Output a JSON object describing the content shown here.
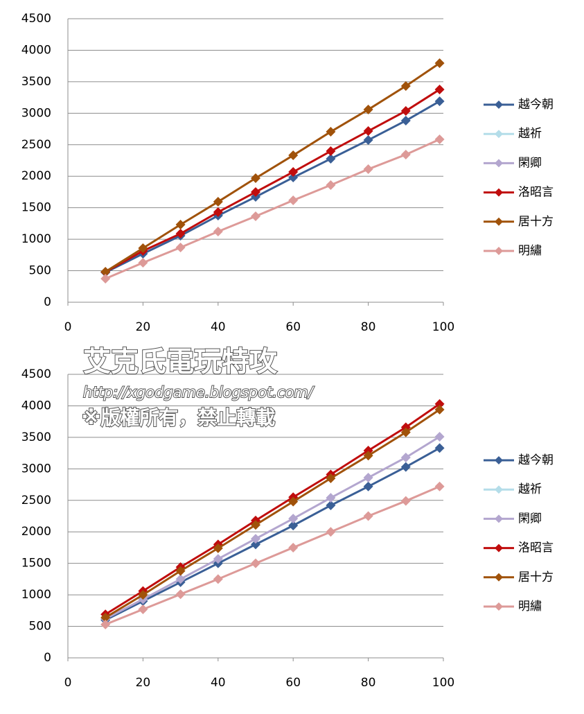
{
  "chart_data": [
    {
      "type": "line",
      "x": [
        10,
        20,
        30,
        40,
        50,
        60,
        70,
        80,
        90,
        99
      ],
      "xlim": [
        0,
        100
      ],
      "xticks": [
        0,
        20,
        40,
        60,
        80,
        100
      ],
      "ylim": [
        0,
        4500
      ],
      "yticks": [
        0,
        500,
        1000,
        1500,
        2000,
        2500,
        3000,
        3500,
        4000,
        4500
      ],
      "grid": true,
      "legend": "right",
      "series": [
        {
          "name": "越今朝",
          "color": "#3a5f96",
          "values": [
            473,
            770,
            1056,
            1375,
            1672,
            1980,
            2277,
            2574,
            2882,
            3190
          ]
        },
        {
          "name": "越祈",
          "color": "#b4dde9",
          "values": [
            null,
            null,
            null,
            null,
            null,
            null,
            null,
            null,
            null,
            null
          ]
        },
        {
          "name": "閑卿",
          "color": "#b3a6cf",
          "values": [
            null,
            null,
            null,
            null,
            null,
            null,
            null,
            null,
            null,
            null
          ]
        },
        {
          "name": "洛昭言",
          "color": "#c00d0d",
          "values": [
            480,
            814,
            1089,
            1430,
            1749,
            2068,
            2398,
            2717,
            3036,
            3377
          ]
        },
        {
          "name": "居十方",
          "color": "#a0520a",
          "values": [
            484,
            858,
            1232,
            1595,
            1969,
            2332,
            2706,
            3058,
            3432,
            3795
          ]
        },
        {
          "name": "明繡",
          "color": "#dd9a98",
          "values": [
            374,
            627,
            869,
            1122,
            1364,
            1617,
            1859,
            2112,
            2343,
            2585
          ]
        }
      ]
    },
    {
      "type": "line",
      "x": [
        10,
        20,
        30,
        40,
        50,
        60,
        70,
        80,
        90,
        99
      ],
      "xlim": [
        0,
        100
      ],
      "xticks": [
        0,
        20,
        40,
        60,
        80,
        100
      ],
      "ylim": [
        0,
        4500
      ],
      "yticks": [
        0,
        500,
        1000,
        1500,
        2000,
        2500,
        3000,
        3500,
        4000,
        4500
      ],
      "grid": true,
      "legend": "right",
      "series": [
        {
          "name": "越今朝",
          "color": "#3a5f96",
          "values": [
            600,
            900,
            1200,
            1500,
            1800,
            2100,
            2420,
            2720,
            3030,
            3330
          ]
        },
        {
          "name": "越祈",
          "color": "#b4dde9",
          "values": [
            null,
            null,
            null,
            null,
            null,
            null,
            null,
            null,
            null,
            null
          ]
        },
        {
          "name": "閑卿",
          "color": "#b3a6cf",
          "values": [
            620,
            930,
            1250,
            1570,
            1890,
            2210,
            2540,
            2860,
            3180,
            3510
          ]
        },
        {
          "name": "洛昭言",
          "color": "#c00d0d",
          "values": [
            690,
            1060,
            1440,
            1800,
            2180,
            2550,
            2910,
            3290,
            3660,
            4030
          ]
        },
        {
          "name": "居十方",
          "color": "#a0520a",
          "values": [
            640,
            1000,
            1380,
            1740,
            2110,
            2480,
            2850,
            3210,
            3580,
            3940
          ]
        },
        {
          "name": "明繡",
          "color": "#dd9a98",
          "values": [
            530,
            770,
            1010,
            1250,
            1500,
            1750,
            2000,
            2250,
            2490,
            2720
          ]
        }
      ]
    }
  ],
  "watermark": {
    "title": "艾克氏電玩特攻",
    "url": "http://xgodgame.blogspot.com/",
    "notice": "※版權所有，禁止轉載"
  }
}
